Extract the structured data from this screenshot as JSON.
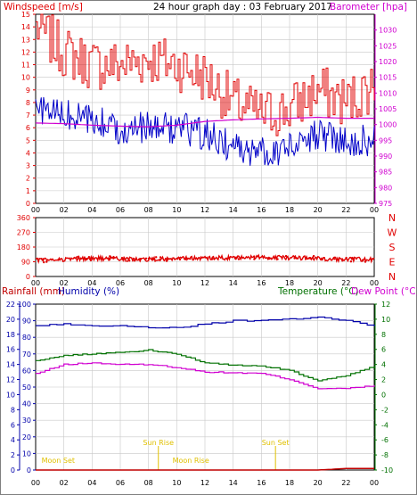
{
  "header": {
    "title": "24 hour graph day : 03 February 2017",
    "windspeed_label": "Windspeed [m/s]",
    "barometer_label": "Barometer [hpa]",
    "rain_label": "Rainfall (mm)",
    "humidity_label": "Humidity (%)",
    "temperature_label": "Temperature (°C)",
    "dewpoint_label": "Dew Point (°C)"
  },
  "colors": {
    "frame": "#000000",
    "grid": "#c8c8c8",
    "wind_gust": "#e00000",
    "wind_avg": "#0000c8",
    "barometer": "#d000d0",
    "direction": "#e00000",
    "humidity": "#0000aa",
    "temperature": "#007000",
    "dewpoint": "#d000d0",
    "rainfall": "#c00000",
    "events": "#e0c000"
  },
  "hour_labels": [
    "00",
    "02",
    "04",
    "06",
    "08",
    "10",
    "12",
    "14",
    "16",
    "18",
    "20",
    "22",
    "00"
  ],
  "direction_compass": [
    "N",
    "W",
    "S",
    "E",
    "N"
  ],
  "events": [
    {
      "label": "Moon Set",
      "hour": 1.6
    },
    {
      "label": "Sun Rise",
      "hour": 8.7
    },
    {
      "label": "Moon Rise",
      "hour": 11.0
    },
    {
      "label": "Sun Set",
      "hour": 17.0
    }
  ],
  "chart_data": [
    {
      "type": "line",
      "title": "24 hour graph day : 03 February 2017",
      "ylabel": "Windspeed [m/s]",
      "y2label": "Barometer [hpa]",
      "x_ticks": [
        "00",
        "02",
        "04",
        "06",
        "08",
        "10",
        "12",
        "14",
        "16",
        "18",
        "20",
        "22",
        "00"
      ],
      "ylim": [
        0,
        15
      ],
      "y_ticks": [
        "0",
        "1",
        "2",
        "3",
        "4",
        "5",
        "6",
        "7",
        "8",
        "9",
        "10",
        "11",
        "12",
        "13",
        "14",
        "15"
      ],
      "y2lim": [
        975,
        1035
      ],
      "y2_ticks": [
        "975",
        "980",
        "985",
        "990",
        "995",
        "1000",
        "1005",
        "1010",
        "1015",
        "1020",
        "1025",
        "1030"
      ],
      "x": [
        0,
        2,
        4,
        6,
        8,
        10,
        12,
        14,
        16,
        18,
        20,
        22,
        24
      ],
      "series": [
        {
          "name": "Wind gust",
          "axis": "left",
          "values": [
            14.0,
            12.0,
            11.0,
            11.0,
            11.5,
            11.0,
            10.0,
            8.0,
            7.0,
            7.5,
            9.0,
            8.0,
            9.5
          ]
        },
        {
          "name": "Wind average",
          "axis": "left",
          "values": [
            7.5,
            7.0,
            6.5,
            6.0,
            6.0,
            6.0,
            5.5,
            4.5,
            4.0,
            4.5,
            5.5,
            5.0,
            5.0
          ]
        },
        {
          "name": "Barometer",
          "axis": "right",
          "values": [
            1000.5,
            1000.3,
            999.8,
            999.5,
            999.3,
            999.8,
            1001.0,
            1001.5,
            1001.8,
            1002.0,
            1002.3,
            1002.0,
            1002.0
          ]
        }
      ],
      "grid": true
    },
    {
      "type": "scatter",
      "x_ticks": [
        "00",
        "02",
        "04",
        "06",
        "08",
        "10",
        "12",
        "14",
        "16",
        "18",
        "20",
        "22",
        "00"
      ],
      "ylim": [
        0,
        360
      ],
      "y_ticks": [
        "0",
        "90",
        "180",
        "270",
        "360"
      ],
      "y2_ticks": [
        "N",
        "W",
        "S",
        "E",
        "N"
      ],
      "x": [
        0,
        2,
        4,
        6,
        8,
        10,
        12,
        14,
        16,
        18,
        20,
        22,
        24
      ],
      "series": [
        {
          "name": "Wind direction",
          "values": [
            100,
            105,
            110,
            110,
            105,
            108,
            112,
            115,
            118,
            115,
            110,
            105,
            105
          ]
        }
      ],
      "grid": true
    },
    {
      "type": "line",
      "ylabel": "Rainfall (mm) / Humidity (%)",
      "y2label": "Temperature (°C) / Dew Point (°C)",
      "x_ticks": [
        "00",
        "02",
        "04",
        "06",
        "08",
        "10",
        "12",
        "14",
        "16",
        "18",
        "20",
        "22",
        "00"
      ],
      "ylim": [
        0,
        100
      ],
      "y_ticks": [
        "0",
        "10",
        "20",
        "30",
        "40",
        "50",
        "60",
        "70",
        "80",
        "90",
        "100"
      ],
      "rain_ylim": [
        0,
        22
      ],
      "rain_ticks": [
        "0",
        "2",
        "4",
        "6",
        "8",
        "10",
        "12",
        "14",
        "16",
        "18",
        "20",
        "22"
      ],
      "y2lim": [
        -10,
        12
      ],
      "y2_ticks": [
        "-10",
        "-8",
        "-6",
        "-4",
        "-2",
        "0",
        "2",
        "4",
        "6",
        "8",
        "10",
        "12"
      ],
      "x": [
        0,
        2,
        4,
        6,
        8,
        10,
        12,
        14,
        16,
        18,
        20,
        22,
        24
      ],
      "series": [
        {
          "name": "Humidity",
          "axis": "left",
          "values": [
            87,
            88,
            87,
            87,
            86,
            86,
            88,
            90,
            90,
            91,
            92,
            90,
            87
          ]
        },
        {
          "name": "Temperature",
          "axis": "right",
          "values": [
            4.5,
            5.2,
            5.4,
            5.6,
            5.9,
            5.4,
            4.2,
            3.9,
            3.8,
            3.2,
            1.8,
            2.5,
            3.8
          ]
        },
        {
          "name": "Dew Point",
          "axis": "right",
          "values": [
            2.8,
            4.0,
            4.2,
            4.0,
            4.0,
            3.6,
            3.0,
            2.9,
            2.8,
            2.0,
            0.8,
            0.8,
            1.2
          ]
        },
        {
          "name": "Rainfall",
          "axis": "left",
          "values": [
            0,
            0,
            0,
            0,
            0,
            0,
            0,
            0,
            0,
            0,
            0,
            0.2,
            0.2
          ]
        }
      ],
      "grid": true
    }
  ]
}
